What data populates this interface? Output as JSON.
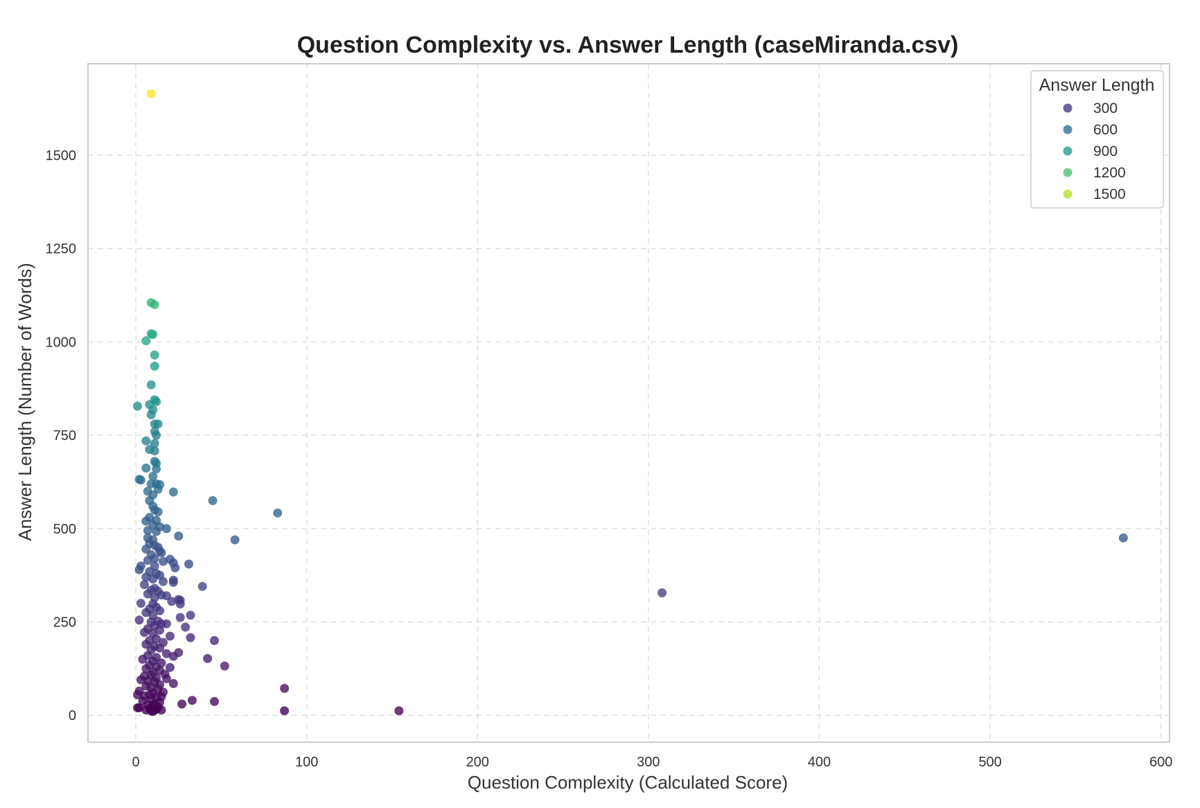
{
  "chart_data": {
    "type": "scatter",
    "title": "Question Complexity vs. Answer Length (caseMiranda.csv)",
    "xlabel": "Question Complexity (Calculated Score)",
    "ylabel": "Answer Length (Number of Words)",
    "xlim": [
      -28,
      605
    ],
    "ylim": [
      -72,
      1745
    ],
    "xticks": [
      0,
      100,
      200,
      300,
      400,
      500,
      600
    ],
    "yticks": [
      0,
      250,
      500,
      750,
      1000,
      1250,
      1500
    ],
    "xtick_labels": [
      "0",
      "100",
      "200",
      "300",
      "400",
      "500",
      "600"
    ],
    "ytick_labels": [
      "0",
      "250",
      "500",
      "750",
      "1000",
      "1250",
      "1500"
    ],
    "grid": true,
    "colormap": "viridis",
    "color_range": [
      10,
      1665
    ],
    "legend": {
      "title": "Answer Length",
      "placement": "top-right",
      "entries": [
        {
          "label": "300",
          "value": 300
        },
        {
          "label": "600",
          "value": 600
        },
        {
          "label": "900",
          "value": 900
        },
        {
          "label": "1200",
          "value": 1200
        },
        {
          "label": "1500",
          "value": 1500
        }
      ]
    },
    "points": [
      [
        9,
        1665
      ],
      [
        9,
        1105
      ],
      [
        11,
        1100
      ],
      [
        6,
        1003
      ],
      [
        9,
        1022
      ],
      [
        10,
        1020
      ],
      [
        11,
        965
      ],
      [
        11,
        935
      ],
      [
        9,
        885
      ],
      [
        1,
        828
      ],
      [
        8,
        832
      ],
      [
        12,
        840
      ],
      [
        11,
        845
      ],
      [
        9,
        805
      ],
      [
        10,
        818
      ],
      [
        11,
        780
      ],
      [
        13,
        780
      ],
      [
        11,
        760
      ],
      [
        12,
        750
      ],
      [
        6,
        735
      ],
      [
        11,
        728
      ],
      [
        8,
        712
      ],
      [
        11,
        708
      ],
      [
        11,
        680
      ],
      [
        12,
        675
      ],
      [
        6,
        662
      ],
      [
        12,
        660
      ],
      [
        10,
        640
      ],
      [
        2,
        632
      ],
      [
        3,
        630
      ],
      [
        9,
        620
      ],
      [
        12,
        620
      ],
      [
        14,
        618
      ],
      [
        13,
        605
      ],
      [
        7,
        600
      ],
      [
        22,
        598
      ],
      [
        10,
        590
      ],
      [
        45,
        575
      ],
      [
        8,
        575
      ],
      [
        10,
        560
      ],
      [
        11,
        550
      ],
      [
        13,
        545
      ],
      [
        83,
        542
      ],
      [
        8,
        530
      ],
      [
        12,
        522
      ],
      [
        6,
        520
      ],
      [
        10,
        510
      ],
      [
        14,
        505
      ],
      [
        18,
        500
      ],
      [
        7,
        495
      ],
      [
        12,
        492
      ],
      [
        25,
        480
      ],
      [
        7,
        475
      ],
      [
        10,
        470
      ],
      [
        58,
        470
      ],
      [
        578,
        475
      ],
      [
        8,
        460
      ],
      [
        11,
        455
      ],
      [
        13,
        450
      ],
      [
        6,
        445
      ],
      [
        14,
        440
      ],
      [
        15,
        435
      ],
      [
        9,
        430
      ],
      [
        11,
        420
      ],
      [
        20,
        418
      ],
      [
        7,
        415
      ],
      [
        16,
        412
      ],
      [
        22,
        408
      ],
      [
        31,
        405
      ],
      [
        3,
        400
      ],
      [
        11,
        400
      ],
      [
        23,
        395
      ],
      [
        2,
        390
      ],
      [
        8,
        385
      ],
      [
        12,
        380
      ],
      [
        14,
        375
      ],
      [
        6,
        370
      ],
      [
        10,
        365
      ],
      [
        22,
        362
      ],
      [
        16,
        358
      ],
      [
        22,
        356
      ],
      [
        5,
        350
      ],
      [
        39,
        345
      ],
      [
        11,
        340
      ],
      [
        9,
        335
      ],
      [
        13,
        332
      ],
      [
        308,
        328
      ],
      [
        7,
        325
      ],
      [
        15,
        322
      ],
      [
        18,
        320
      ],
      [
        11,
        315
      ],
      [
        25,
        310
      ],
      [
        26,
        308
      ],
      [
        21,
        305
      ],
      [
        3,
        300
      ],
      [
        10,
        298
      ],
      [
        26,
        298
      ],
      [
        12,
        290
      ],
      [
        8,
        285
      ],
      [
        14,
        280
      ],
      [
        6,
        275
      ],
      [
        32,
        268
      ],
      [
        10,
        268
      ],
      [
        26,
        262
      ],
      [
        2,
        255
      ],
      [
        13,
        252
      ],
      [
        9,
        250
      ],
      [
        15,
        245
      ],
      [
        18,
        245
      ],
      [
        11,
        240
      ],
      [
        29,
        236
      ],
      [
        7,
        232
      ],
      [
        14,
        228
      ],
      [
        5,
        222
      ],
      [
        10,
        220
      ],
      [
        20,
        212
      ],
      [
        32,
        208
      ],
      [
        12,
        205
      ],
      [
        46,
        200
      ],
      [
        8,
        200
      ],
      [
        16,
        195
      ],
      [
        6,
        190
      ],
      [
        11,
        185
      ],
      [
        14,
        180
      ],
      [
        9,
        175
      ],
      [
        25,
        168
      ],
      [
        18,
        165
      ],
      [
        7,
        160
      ],
      [
        22,
        158
      ],
      [
        42,
        152
      ],
      [
        12,
        155
      ],
      [
        4,
        150
      ],
      [
        10,
        145
      ],
      [
        15,
        140
      ],
      [
        52,
        132
      ],
      [
        8,
        135
      ],
      [
        12,
        130
      ],
      [
        20,
        128
      ],
      [
        6,
        125
      ],
      [
        14,
        120
      ],
      [
        10,
        115
      ],
      [
        17,
        110
      ],
      [
        9,
        108
      ],
      [
        5,
        105
      ],
      [
        12,
        100
      ],
      [
        18,
        98
      ],
      [
        3,
        95
      ],
      [
        7,
        92
      ],
      [
        11,
        90
      ],
      [
        22,
        85
      ],
      [
        14,
        82
      ],
      [
        87,
        72
      ],
      [
        6,
        78
      ],
      [
        9,
        75
      ],
      [
        13,
        70
      ],
      [
        2,
        65
      ],
      [
        16,
        62
      ],
      [
        10,
        60
      ],
      [
        8,
        55
      ],
      [
        1,
        55
      ],
      [
        5,
        52
      ],
      [
        15,
        50
      ],
      [
        12,
        48
      ],
      [
        33,
        40
      ],
      [
        46,
        37
      ],
      [
        9,
        42
      ],
      [
        4,
        38
      ],
      [
        14,
        35
      ],
      [
        27,
        30
      ],
      [
        11,
        30
      ],
      [
        7,
        28
      ],
      [
        10,
        25
      ],
      [
        13,
        22
      ],
      [
        1,
        20
      ],
      [
        2,
        20
      ],
      [
        8,
        18
      ],
      [
        12,
        16
      ],
      [
        15,
        14
      ],
      [
        9,
        12
      ],
      [
        87,
        12
      ],
      [
        154,
        12
      ],
      [
        10,
        10
      ],
      [
        11,
        14
      ],
      [
        6,
        14
      ]
    ]
  }
}
